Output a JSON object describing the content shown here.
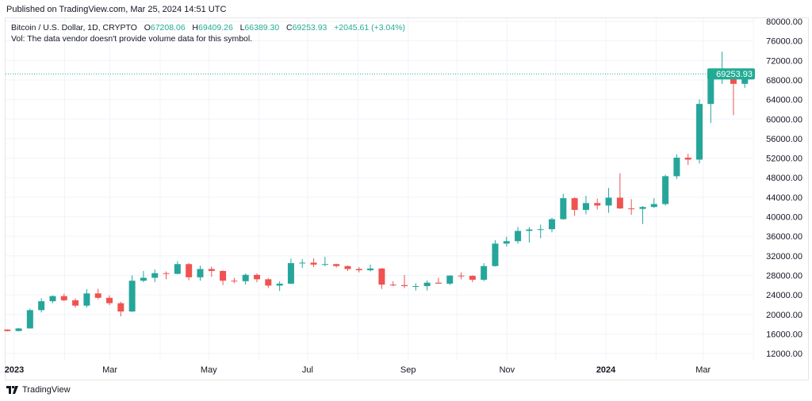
{
  "published": "Published on TradingView.com, Mar 25, 2024 14:51 UTC",
  "legend": {
    "symbol": "Bitcoin / U.S. Dollar, 1D, CRYPTO",
    "o_label": "O",
    "o": "67208.06",
    "h_label": "H",
    "h": "69409.26",
    "l_label": "L",
    "l": "66389.30",
    "c_label": "C",
    "c": "69253.93",
    "change": "+2045.61 (+3.04%)",
    "vol": "Vol: The data vendor doesn't provide volume data for this symbol."
  },
  "footer": {
    "brand": "TradingView",
    "logo_text": "TV"
  },
  "chart_data": {
    "type": "candlestick",
    "interval_shown": "1D",
    "ylim": [
      10000,
      80000
    ],
    "y_ticks": [
      "80000.00",
      "76000.00",
      "72000.00",
      "68000.00",
      "64000.00",
      "60000.00",
      "56000.00",
      "52000.00",
      "48000.00",
      "44000.00",
      "40000.00",
      "36000.00",
      "32000.00",
      "28000.00",
      "24000.00",
      "20000.00",
      "16000.00",
      "12000.00"
    ],
    "x_ticks": [
      {
        "label": "2023",
        "date": "2023-01-01",
        "bold": true
      },
      {
        "label": "Mar",
        "date": "2023-03-01",
        "bold": false
      },
      {
        "label": "May",
        "date": "2023-05-01",
        "bold": false
      },
      {
        "label": "Jul",
        "date": "2023-07-01",
        "bold": false
      },
      {
        "label": "Sep",
        "date": "2023-09-01",
        "bold": false
      },
      {
        "label": "Nov",
        "date": "2023-11-01",
        "bold": false
      },
      {
        "label": "2024",
        "date": "2024-01-01",
        "bold": true
      },
      {
        "label": "Mar",
        "date": "2024-03-01",
        "bold": false
      }
    ],
    "last_price": "69253.93",
    "colors": {
      "up": "#26a69a",
      "down": "#ef5350",
      "last_price": "#22ab94",
      "grid": "#f0f3fa"
    },
    "candles_weekly_approx": [
      [
        "2022-12-26",
        16900,
        16950,
        16500,
        16600
      ],
      [
        "2023-01-02",
        16600,
        17200,
        16550,
        17130
      ],
      [
        "2023-01-09",
        17130,
        21200,
        17100,
        20880
      ],
      [
        "2023-01-16",
        20880,
        23300,
        20400,
        22700
      ],
      [
        "2023-01-23",
        22700,
        23900,
        22300,
        23750
      ],
      [
        "2023-01-30",
        23750,
        24250,
        22700,
        22900
      ],
      [
        "2023-02-06",
        22900,
        23300,
        21400,
        21800
      ],
      [
        "2023-02-13",
        21800,
        25200,
        21400,
        24300
      ],
      [
        "2023-02-20",
        24300,
        25250,
        23100,
        23400
      ],
      [
        "2023-02-27",
        23400,
        23900,
        21900,
        22300
      ],
      [
        "2023-03-06",
        22300,
        22600,
        19600,
        20600
      ],
      [
        "2023-03-13",
        20600,
        28000,
        20500,
        26900
      ],
      [
        "2023-03-20",
        26900,
        28900,
        26600,
        27500
      ],
      [
        "2023-03-27",
        27500,
        29200,
        26600,
        28450
      ],
      [
        "2023-04-03",
        28450,
        28800,
        27200,
        28300
      ],
      [
        "2023-04-10",
        28300,
        30900,
        28200,
        30300
      ],
      [
        "2023-04-17",
        30300,
        30500,
        27000,
        27600
      ],
      [
        "2023-04-24",
        27600,
        30000,
        26900,
        29300
      ],
      [
        "2023-05-01",
        29300,
        29800,
        27700,
        28900
      ],
      [
        "2023-05-08",
        28900,
        29000,
        26000,
        26900
      ],
      [
        "2023-05-15",
        26900,
        27500,
        26400,
        26800
      ],
      [
        "2023-05-22",
        26800,
        28400,
        26100,
        28100
      ],
      [
        "2023-05-29",
        28100,
        28400,
        26600,
        27200
      ],
      [
        "2023-06-05",
        27200,
        27400,
        25400,
        25900
      ],
      [
        "2023-06-12",
        25900,
        26800,
        24800,
        26300
      ],
      [
        "2023-06-19",
        26300,
        31400,
        26200,
        30500
      ],
      [
        "2023-06-26",
        30500,
        31300,
        29500,
        30600
      ],
      [
        "2023-07-03",
        30600,
        31500,
        29700,
        30200
      ],
      [
        "2023-07-10",
        30200,
        31800,
        29900,
        30300
      ],
      [
        "2023-07-17",
        30300,
        30400,
        29600,
        29900
      ],
      [
        "2023-07-24",
        29900,
        30000,
        28900,
        29300
      ],
      [
        "2023-07-31",
        29300,
        29700,
        28600,
        29050
      ],
      [
        "2023-08-07",
        29050,
        30200,
        28800,
        29400
      ],
      [
        "2023-08-14",
        29400,
        29500,
        25200,
        26100
      ],
      [
        "2023-08-21",
        26100,
        26800,
        25800,
        26000
      ],
      [
        "2023-08-28",
        26000,
        28100,
        25400,
        25800
      ],
      [
        "2023-09-04",
        25800,
        26400,
        24900,
        25800
      ],
      [
        "2023-09-11",
        25800,
        27000,
        24900,
        26500
      ],
      [
        "2023-09-18",
        26500,
        27500,
        26400,
        26300
      ],
      [
        "2023-09-25",
        26300,
        28000,
        26000,
        27950
      ],
      [
        "2023-10-02",
        27950,
        28600,
        27200,
        27900
      ],
      [
        "2023-10-09",
        27900,
        28000,
        26600,
        27100
      ],
      [
        "2023-10-16",
        27100,
        30500,
        26800,
        29900
      ],
      [
        "2023-10-23",
        29900,
        35200,
        29800,
        34500
      ],
      [
        "2023-10-30",
        34500,
        35900,
        33900,
        35000
      ],
      [
        "2023-11-06",
        35000,
        37900,
        34500,
        37100
      ],
      [
        "2023-11-13",
        37100,
        37900,
        34700,
        37400
      ],
      [
        "2023-11-20",
        37400,
        38400,
        35600,
        37450
      ],
      [
        "2023-11-27",
        37450,
        39800,
        36800,
        39500
      ],
      [
        "2023-12-04",
        39500,
        44700,
        39400,
        43800
      ],
      [
        "2023-12-11",
        43800,
        44000,
        40200,
        41400
      ],
      [
        "2023-12-18",
        41400,
        44300,
        40500,
        42800
      ],
      [
        "2023-12-25",
        42800,
        43700,
        41500,
        42300
      ],
      [
        "2024-01-01",
        42300,
        45900,
        40800,
        43900
      ],
      [
        "2024-01-08",
        43900,
        48900,
        41600,
        41700
      ],
      [
        "2024-01-15",
        41700,
        43600,
        40400,
        41600
      ],
      [
        "2024-01-22",
        41600,
        42200,
        38500,
        42000
      ],
      [
        "2024-01-29",
        42000,
        43800,
        41800,
        42600
      ],
      [
        "2024-02-05",
        42600,
        48600,
        42300,
        48300
      ],
      [
        "2024-02-12",
        48300,
        52800,
        47700,
        52100
      ],
      [
        "2024-02-19",
        52100,
        52900,
        50600,
        51700
      ],
      [
        "2024-02-26",
        51700,
        64000,
        50900,
        63100
      ],
      [
        "2024-03-04",
        63100,
        69200,
        59200,
        68400
      ],
      [
        "2024-03-11",
        68400,
        73800,
        67200,
        68400
      ],
      [
        "2024-03-18",
        68400,
        68900,
        60800,
        67208
      ],
      [
        "2024-03-25",
        67208.06,
        69409.26,
        66389.3,
        69253.93
      ]
    ]
  }
}
